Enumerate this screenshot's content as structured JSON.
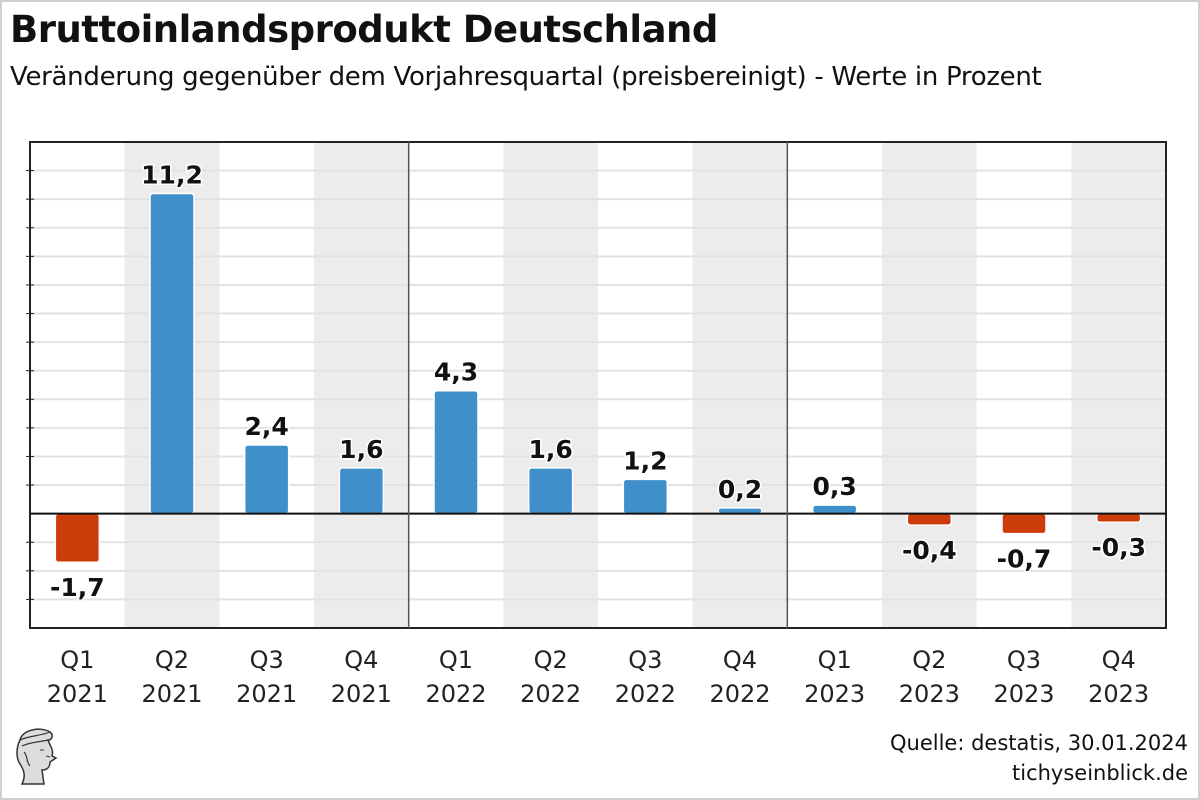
{
  "header": {
    "title": "Bruttoinlandsprodukt Deutschland",
    "subtitle": "Veränderung gegenüber dem Vorjahresquartal (preisbereinigt) - Werte in Prozent"
  },
  "footer": {
    "source": "Quelle: destatis, 30.01.2024",
    "site": "tichyseinblick.de",
    "logo_icon": "hermes-head-logo-icon"
  },
  "colors": {
    "positive": "#3f8fca",
    "negative": "#cc3b0a",
    "band": "#ececec"
  },
  "chart_data": {
    "type": "bar",
    "title": "Bruttoinlandsprodukt Deutschland",
    "subtitle": "Veränderung gegenüber dem Vorjahresquartal (preisbereinigt) - Werte in Prozent",
    "xlabel": "",
    "ylabel": "",
    "ylim": [
      -4,
      13
    ],
    "grid": true,
    "legend": "none",
    "categories": [
      {
        "quarter": "Q1",
        "year": "2021"
      },
      {
        "quarter": "Q2",
        "year": "2021"
      },
      {
        "quarter": "Q3",
        "year": "2021"
      },
      {
        "quarter": "Q4",
        "year": "2021"
      },
      {
        "quarter": "Q1",
        "year": "2022"
      },
      {
        "quarter": "Q2",
        "year": "2022"
      },
      {
        "quarter": "Q3",
        "year": "2022"
      },
      {
        "quarter": "Q4",
        "year": "2022"
      },
      {
        "quarter": "Q1",
        "year": "2023"
      },
      {
        "quarter": "Q2",
        "year": "2023"
      },
      {
        "quarter": "Q3",
        "year": "2023"
      },
      {
        "quarter": "Q4",
        "year": "2023"
      }
    ],
    "values": [
      -1.7,
      11.2,
      2.4,
      1.6,
      4.3,
      1.6,
      1.2,
      0.2,
      0.3,
      -0.4,
      -0.7,
      -0.3
    ],
    "labels": [
      "-1,7",
      "11,2",
      "2,4",
      "1,6",
      "4,3",
      "1,6",
      "1,2",
      "0,2",
      "0,3",
      "-0,4",
      "-0,7",
      "-0,3"
    ]
  }
}
